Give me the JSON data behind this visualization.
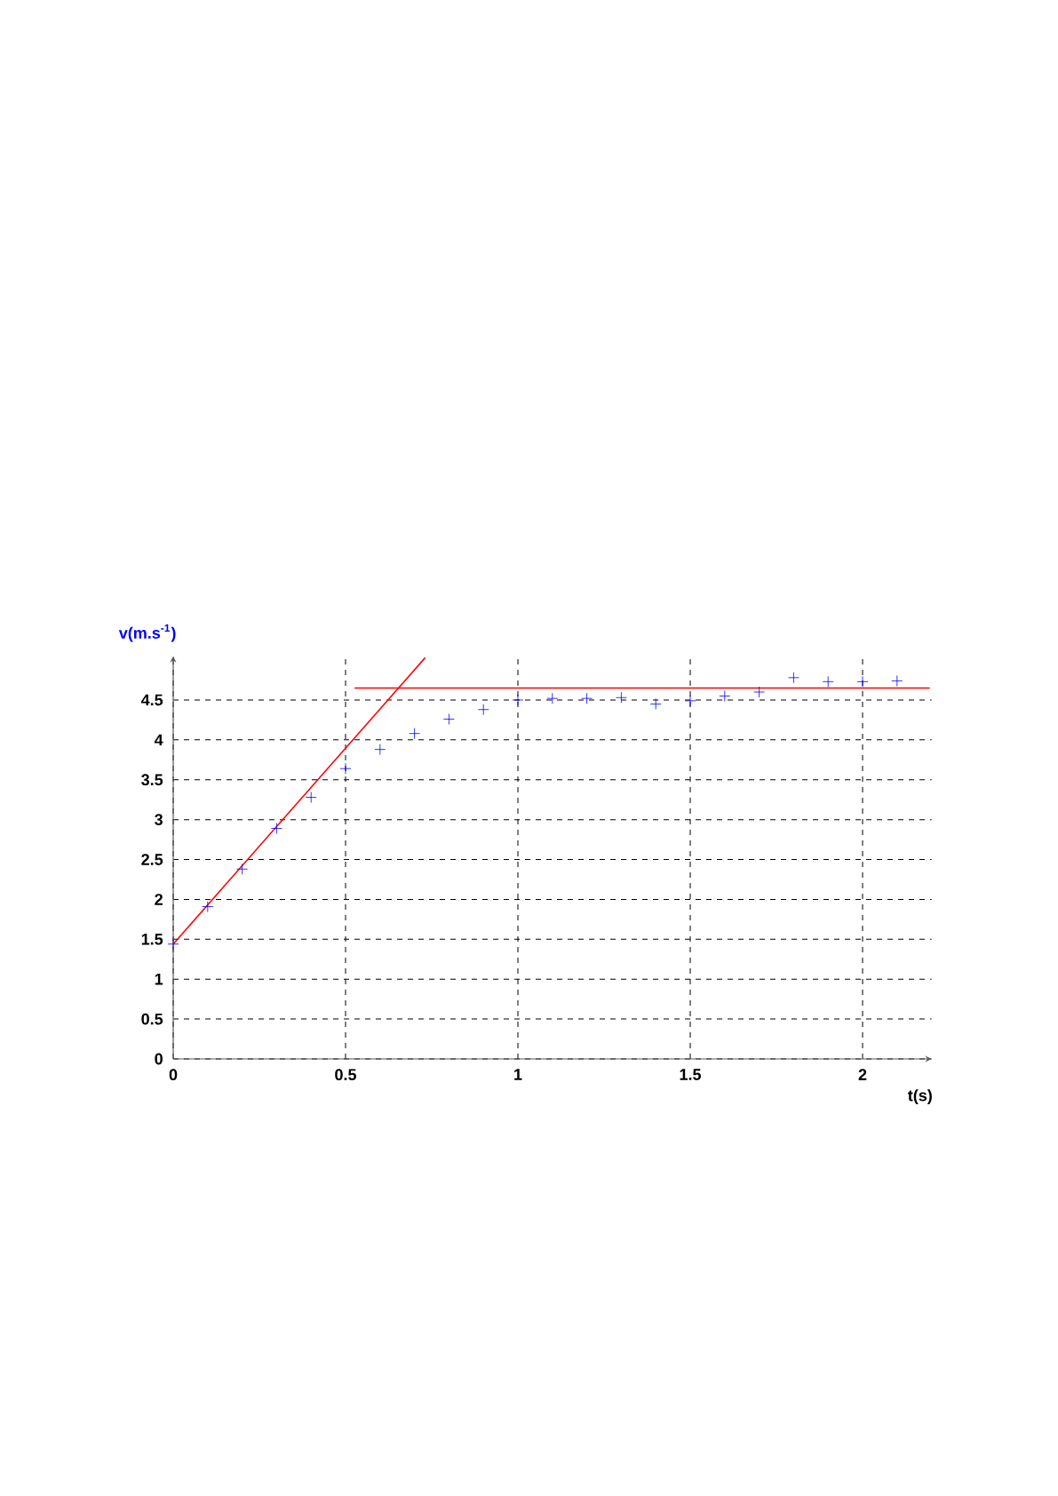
{
  "chart_data": {
    "type": "scatter",
    "xlabel": "t(s)",
    "ylabel": "v(m.s$^{-1}$)",
    "xlim": [
      0,
      2.2
    ],
    "ylim": [
      0,
      5.05
    ],
    "xticks": [
      0,
      0.5,
      1,
      1.5,
      2
    ],
    "yticks": [
      0,
      0.5,
      1,
      1.5,
      2,
      2.5,
      3,
      3.5,
      4,
      4.5
    ],
    "grid": true,
    "series": [
      {
        "marker": "cross",
        "color": "#0000ff",
        "x": [
          0,
          0.1,
          0.2,
          0.3,
          0.4,
          0.5,
          0.6,
          0.7,
          0.8,
          0.9,
          1.0,
          1.1,
          1.2,
          1.3,
          1.4,
          1.5,
          1.6,
          1.7,
          1.8,
          1.9,
          2.0,
          2.1
        ],
        "values": [
          1.44,
          1.91,
          2.38,
          2.89,
          3.28,
          3.64,
          3.88,
          4.08,
          4.26,
          4.38,
          4.5,
          4.52,
          4.52,
          4.53,
          4.45,
          4.49,
          4.55,
          4.6,
          4.78,
          4.73,
          4.73,
          4.74
        ]
      },
      {
        "type": "line",
        "color": "#ff0000",
        "line_style": "solid",
        "marker": "none",
        "x": [
          0,
          0.731
        ],
        "values": [
          1.44,
          5.03
        ]
      },
      {
        "type": "line",
        "color": "#ff0000",
        "line_style": "solid",
        "marker": "none",
        "x": [
          0.526,
          2.195
        ],
        "values": [
          4.65,
          4.65
        ]
      }
    ]
  }
}
